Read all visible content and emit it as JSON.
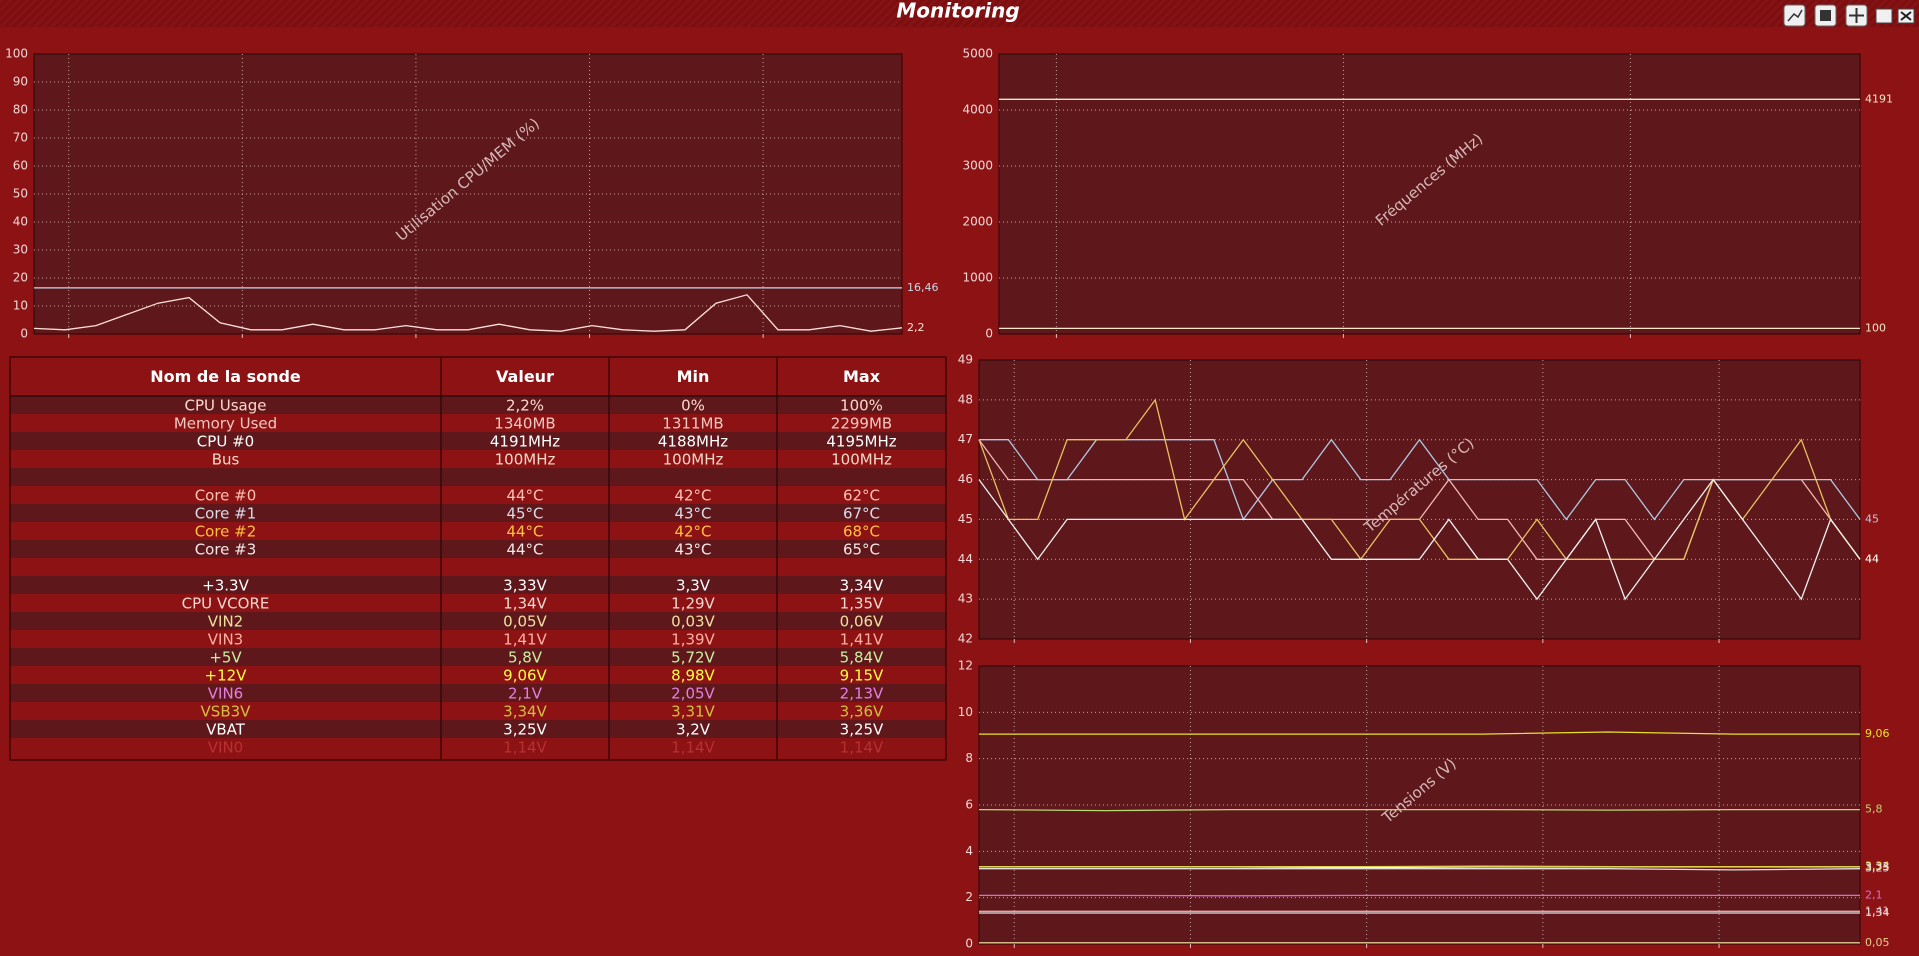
{
  "window": {
    "title": "Monitoring"
  },
  "chart_data": [
    {
      "type": "line",
      "title": "Utilisation CPU/MEM (%)",
      "ylim": [
        0,
        100
      ],
      "yticks": [
        0,
        10,
        20,
        30,
        40,
        50,
        60,
        70,
        80,
        90,
        100
      ],
      "grid": true,
      "series": [
        {
          "color": "#c8d8e8",
          "end_label": "16,46",
          "values": [
            16.46,
            16.46,
            16.46,
            16.46,
            16.46,
            16.46,
            16.46,
            16.46,
            16.46,
            16.46,
            16.46,
            16.46,
            16.46,
            16.46,
            16.46,
            16.46,
            16.46,
            16.46,
            16.46,
            16.46,
            16.46,
            16.46,
            16.46,
            16.46,
            16.46,
            16.46,
            16.46,
            16.46,
            16.46
          ]
        },
        {
          "color": "#ffe0d8",
          "end_label": "2,2",
          "values": [
            2,
            1.5,
            3,
            7,
            11,
            13,
            4,
            1.5,
            1.5,
            3.5,
            1.5,
            1.5,
            3,
            1.5,
            1.5,
            3.5,
            1.5,
            1,
            3,
            1.5,
            1,
            1.5,
            11,
            14,
            1.5,
            1.5,
            3,
            1,
            2.2
          ]
        }
      ]
    },
    {
      "type": "line",
      "title": "Fréquences (MHz)",
      "ylim": [
        0,
        5000
      ],
      "yticks": [
        0,
        1000,
        2000,
        3000,
        4000,
        5000
      ],
      "grid": true,
      "series": [
        {
          "color": "#f0e8c8",
          "end_label": "4191",
          "values": [
            4191,
            4191
          ]
        },
        {
          "color": "#f0e8c8",
          "end_label": "100",
          "values": [
            100,
            100
          ]
        }
      ]
    },
    {
      "type": "line",
      "title": "Températures (°C)",
      "ylim": [
        42,
        49
      ],
      "yticks": [
        42,
        43,
        44,
        45,
        46,
        47,
        48,
        49
      ],
      "grid": true,
      "series": [
        {
          "color": "#f0b8b0",
          "end_label": "44",
          "values": [
            47,
            46,
            46,
            46,
            46,
            46,
            46,
            46,
            46,
            46,
            45,
            45,
            45,
            45,
            45,
            45,
            46,
            45,
            45,
            44,
            44,
            45,
            45,
            44,
            44,
            46,
            46,
            46,
            46,
            45,
            44
          ]
        },
        {
          "color": "#b0c8e0",
          "end_label": "45",
          "values": [
            47,
            47,
            46,
            46,
            47,
            47,
            47,
            47,
            47,
            45,
            46,
            46,
            47,
            46,
            46,
            47,
            46,
            46,
            46,
            46,
            45,
            46,
            46,
            45,
            46,
            46,
            46,
            46,
            46,
            46,
            45
          ]
        },
        {
          "color": "#e8c060",
          "end_label": "44",
          "values": [
            47,
            45,
            45,
            47,
            47,
            47,
            48,
            45,
            46,
            47,
            46,
            45,
            45,
            44,
            45,
            45,
            44,
            44,
            44,
            45,
            44,
            44,
            44,
            44,
            44,
            46,
            45,
            46,
            47,
            45,
            44
          ]
        },
        {
          "color": "#f0f0f0",
          "end_label": "44",
          "values": [
            46,
            45,
            44,
            45,
            45,
            45,
            45,
            45,
            45,
            45,
            45,
            45,
            44,
            44,
            44,
            44,
            45,
            44,
            44,
            43,
            44,
            45,
            43,
            44,
            45,
            46,
            45,
            44,
            43,
            45,
            44
          ]
        }
      ]
    },
    {
      "type": "line",
      "title": "Tensions (V)",
      "ylim": [
        0,
        12
      ],
      "yticks": [
        0,
        2,
        4,
        6,
        8,
        10,
        12
      ],
      "grid": true,
      "series": [
        {
          "color": "#e8e030",
          "end_label": "9,06",
          "values": [
            9.06,
            9.06,
            9.06,
            9.06,
            9.06,
            9.15,
            9.06,
            9.06
          ]
        },
        {
          "color": "#b8d870",
          "end_label": "5,8",
          "values": [
            5.8,
            5.76,
            5.8,
            5.8,
            5.8,
            5.78,
            5.8,
            5.8
          ]
        },
        {
          "color": "#ffffff",
          "end_label": "3,33",
          "values": [
            3.33,
            3.33,
            3.33,
            3.3,
            3.33,
            3.33,
            3.33,
            3.33
          ]
        },
        {
          "color": "#e0d050",
          "end_label": "3,34",
          "values": [
            3.34,
            3.34,
            3.34,
            3.34,
            3.36,
            3.34,
            3.34,
            3.34
          ]
        },
        {
          "color": "#e0e0e0",
          "end_label": "3,25",
          "values": [
            3.25,
            3.25,
            3.25,
            3.25,
            3.25,
            3.25,
            3.2,
            3.25
          ]
        },
        {
          "color": "#d070d0",
          "end_label": "2,1",
          "values": [
            2.1,
            2.1,
            2.08,
            2.1,
            2.1,
            2.1,
            2.1,
            2.1
          ]
        },
        {
          "color": "#f0a0a0",
          "end_label": "1,41",
          "values": [
            1.41,
            1.41,
            1.41,
            1.41,
            1.41,
            1.41,
            1.41,
            1.41
          ]
        },
        {
          "color": "#e0e0e0",
          "end_label": "1,34",
          "values": [
            1.34,
            1.34,
            1.34,
            1.34,
            1.34,
            1.34,
            1.34,
            1.34
          ]
        },
        {
          "color": "#e0d090",
          "end_label": "0,05",
          "values": [
            0.05,
            0.05,
            0.05,
            0.05,
            0.05,
            0.05,
            0.05,
            0.05
          ]
        }
      ]
    }
  ],
  "table": {
    "header": [
      "Nom de la sonde",
      "Valeur",
      "Min",
      "Max"
    ],
    "groups": [
      [
        {
          "color": "#ffd8cc",
          "cells": [
            "CPU Usage",
            "2,2%",
            "0%",
            "100%"
          ]
        },
        {
          "color": "#f0c8c0",
          "cells": [
            "Memory Used",
            "1340MB",
            "1311MB",
            "2299MB"
          ]
        },
        {
          "color": "#ffffff",
          "cells": [
            "CPU #0",
            "4191MHz",
            "4188MHz",
            "4195MHz"
          ]
        },
        {
          "color": "#f0d8c8",
          "cells": [
            "Bus",
            "100MHz",
            "100MHz",
            "100MHz"
          ]
        }
      ],
      [
        {
          "color": "#ffc0b0",
          "cells": [
            "Core #0",
            "44°C",
            "42°C",
            "62°C"
          ]
        },
        {
          "color": "#d8dce8",
          "cells": [
            "Core #1",
            "45°C",
            "43°C",
            "67°C"
          ]
        },
        {
          "color": "#ffc040",
          "cells": [
            "Core #2",
            "44°C",
            "42°C",
            "68°C"
          ]
        },
        {
          "color": "#f4e8e8",
          "cells": [
            "Core #3",
            "44°C",
            "43°C",
            "65°C"
          ]
        }
      ],
      [
        {
          "color": "#ffffff",
          "cells": [
            "+3.3V",
            "3,33V",
            "3,3V",
            "3,34V"
          ]
        },
        {
          "color": "#f0d8d0",
          "cells": [
            "CPU VCORE",
            "1,34V",
            "1,29V",
            "1,35V"
          ]
        },
        {
          "color": "#f0e0a0",
          "cells": [
            "VIN2",
            "0,05V",
            "0,03V",
            "0,06V"
          ]
        },
        {
          "color": "#ffb0a0",
          "cells": [
            "VIN3",
            "1,41V",
            "1,39V",
            "1,41V"
          ]
        },
        {
          "color": "#c8f0a0",
          "cells": [
            "+5V",
            "5,8V",
            "5,72V",
            "5,84V"
          ]
        },
        {
          "color": "#ffff40",
          "cells": [
            "+12V",
            "9,06V",
            "8,98V",
            "9,15V"
          ]
        },
        {
          "color": "#e080e0",
          "cells": [
            "VIN6",
            "2,1V",
            "2,05V",
            "2,13V"
          ]
        },
        {
          "color": "#d0c040",
          "cells": [
            "VSB3V",
            "3,34V",
            "3,31V",
            "3,36V"
          ]
        },
        {
          "color": "#ffffff",
          "cells": [
            "VBAT",
            "3,25V",
            "3,2V",
            "3,25V"
          ]
        },
        {
          "color": "#b83030",
          "cells": [
            "VIN0",
            "1,14V",
            "1,14V",
            "1,14V"
          ]
        }
      ]
    ]
  }
}
